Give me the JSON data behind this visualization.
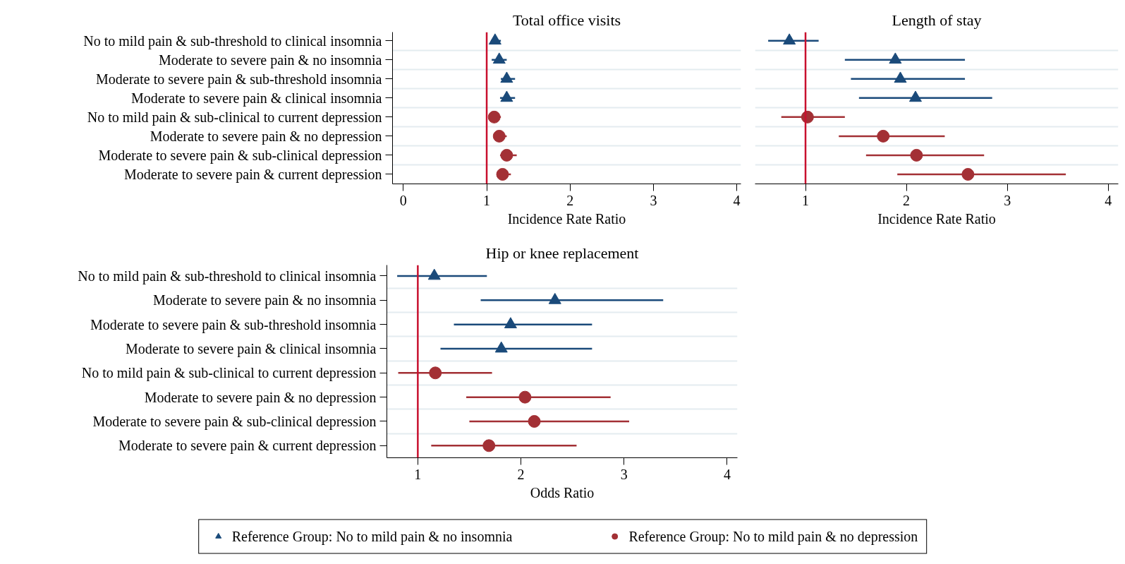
{
  "chart_data": [
    {
      "type": "scatter",
      "orientation": "horizontal",
      "title": "Total office visits",
      "xlabel": "Incidence Rate Ratio",
      "categories": [
        "No to mild pain & sub-threshold to clinical insomnia",
        "Moderate to severe pain & no insomnia",
        "Moderate to severe pain & sub-threshold insomnia",
        "Moderate to severe pain & clinical insomnia",
        "No to mild pain & sub-clinical to current depression",
        "Moderate to severe pain & no depression",
        "Moderate to severe pain & sub-clinical depression",
        "Moderate to severe pain & current depression"
      ],
      "xlim": [
        -0.13,
        4.05
      ],
      "xticks": [
        0,
        1,
        2,
        3,
        4
      ],
      "grid": "y",
      "ref_lines": [
        {
          "axis": "x",
          "value": 1,
          "color": "#c8102e"
        }
      ],
      "series": [
        {
          "color": "#1a4a7a",
          "marker": "triangle",
          "values": [
            1.1,
            1.15,
            1.24,
            1.24,
            null,
            null,
            null,
            null
          ],
          "errors": [
            [
              1.05,
              1.17
            ],
            [
              1.06,
              1.24
            ],
            [
              1.17,
              1.34
            ],
            [
              1.16,
              1.34
            ],
            null,
            null,
            null,
            null
          ]
        },
        {
          "color": "#a33035",
          "marker": "circle",
          "values": [
            null,
            null,
            null,
            null,
            1.09,
            1.15,
            1.24,
            1.19
          ],
          "errors": [
            null,
            null,
            null,
            null,
            [
              1.04,
              1.17
            ],
            [
              1.1,
              1.24
            ],
            [
              1.16,
              1.36
            ],
            [
              1.13,
              1.29
            ]
          ]
        }
      ]
    },
    {
      "type": "scatter",
      "orientation": "horizontal",
      "title": "Length of stay",
      "xlabel": "Incidence Rate Ratio",
      "categories": [
        null,
        null,
        null,
        null,
        null,
        null,
        null,
        null
      ],
      "xlim": [
        0.5,
        4.1
      ],
      "xticks": [
        1,
        2,
        3,
        4
      ],
      "grid": "y",
      "ref_lines": [
        {
          "axis": "x",
          "value": 1,
          "color": "#c8102e"
        }
      ],
      "series": [
        {
          "color": "#1a4a7a",
          "marker": "triangle",
          "values": [
            0.84,
            1.89,
            1.94,
            2.09,
            null,
            null,
            null,
            null
          ],
          "errors": [
            [
              0.63,
              1.13
            ],
            [
              1.39,
              2.58
            ],
            [
              1.45,
              2.58
            ],
            [
              1.53,
              2.85
            ],
            null,
            null,
            null,
            null
          ]
        },
        {
          "color": "#a33035",
          "marker": "circle",
          "values": [
            null,
            null,
            null,
            null,
            1.02,
            1.77,
            2.1,
            2.61
          ],
          "errors": [
            null,
            null,
            null,
            null,
            [
              0.76,
              1.39
            ],
            [
              1.33,
              2.38
            ],
            [
              1.6,
              2.77
            ],
            [
              1.91,
              3.58
            ]
          ]
        }
      ]
    },
    {
      "type": "scatter",
      "orientation": "horizontal",
      "title": "Hip or knee replacement",
      "xlabel": "Odds Ratio",
      "legend": "bottom",
      "categories": [
        "No to mild pain & sub-threshold to clinical insomnia",
        "Moderate to severe pain & no insomnia",
        "Moderate to severe pain & sub-threshold insomnia",
        "Moderate to severe pain & clinical insomnia",
        "No to mild pain & sub-clinical to current depression",
        "Moderate to severe pain & no depression",
        "Moderate to severe pain & sub-clinical depression",
        "Moderate to severe pain & current depression"
      ],
      "xlim": [
        0.7,
        4.1
      ],
      "xticks": [
        1,
        2,
        3,
        4
      ],
      "grid": "y",
      "ref_lines": [
        {
          "axis": "x",
          "value": 1,
          "color": "#c8102e"
        }
      ],
      "series": [
        {
          "name": "Reference Group: No to mild pain & no insomnia",
          "color": "#1a4a7a",
          "marker": "triangle",
          "values": [
            1.16,
            2.33,
            1.9,
            1.81,
            null,
            null,
            null,
            null
          ],
          "errors": [
            [
              0.8,
              1.67
            ],
            [
              1.61,
              3.38
            ],
            [
              1.35,
              2.69
            ],
            [
              1.22,
              2.69
            ],
            null,
            null,
            null,
            null
          ]
        },
        {
          "name": "Reference Group: No to mild pain & no depression",
          "color": "#a33035",
          "marker": "circle",
          "values": [
            null,
            null,
            null,
            null,
            1.17,
            2.04,
            2.13,
            1.69
          ],
          "errors": [
            null,
            null,
            null,
            null,
            [
              0.81,
              1.72
            ],
            [
              1.47,
              2.87
            ],
            [
              1.5,
              3.05
            ],
            [
              1.13,
              2.54
            ]
          ]
        }
      ]
    }
  ]
}
